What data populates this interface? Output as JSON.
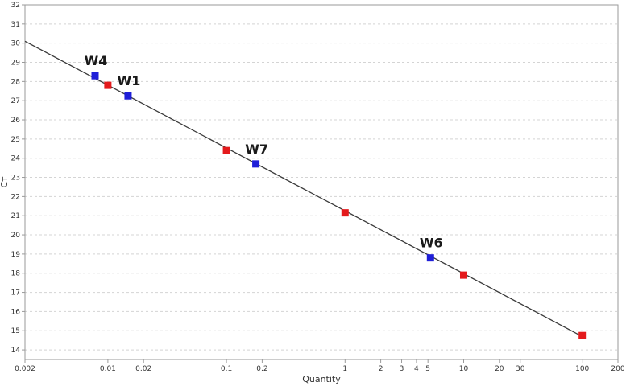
{
  "chart_data": {
    "type": "scatter",
    "xlabel": "Quantity",
    "ylabel": "Cᴛ",
    "xscale": "log",
    "xlim": [
      0.002,
      200
    ],
    "ylim": [
      13.5,
      32
    ],
    "grid": "horizontal dashed",
    "x_ticks": [
      0.002,
      0.01,
      0.02,
      0.1,
      0.2,
      1,
      2,
      3,
      4,
      5,
      10,
      20,
      30,
      100,
      200
    ],
    "x_tick_labels": [
      "0.002",
      "0.01",
      "0.02",
      "0.1",
      "0.2",
      "1",
      "2",
      "3",
      "4",
      "5",
      "10",
      "20",
      "30",
      "100",
      "200"
    ],
    "y_ticks": [
      14,
      15,
      16,
      17,
      18,
      19,
      20,
      21,
      22,
      23,
      24,
      25,
      26,
      27,
      28,
      29,
      30,
      31,
      32
    ],
    "y_tick_labels": [
      "14",
      "15",
      "16",
      "17",
      "18",
      "19",
      "20",
      "21",
      "22",
      "23",
      "24",
      "25",
      "26",
      "27",
      "28",
      "29",
      "30",
      "31",
      "32"
    ],
    "fit_line": {
      "x": [
        0.002,
        100
      ],
      "y": [
        30.1,
        14.7
      ],
      "color": "#3a3a3a"
    },
    "series": [
      {
        "color": "#e41a1c",
        "points": [
          {
            "x": 0.01,
            "y": 27.8
          },
          {
            "x": 0.1,
            "y": 24.4
          },
          {
            "x": 1,
            "y": 21.15
          },
          {
            "x": 10,
            "y": 17.9
          },
          {
            "x": 100,
            "y": 14.75
          }
        ]
      },
      {
        "color": "#1f1fd8",
        "points": [
          {
            "x": 0.0078,
            "y": 28.3,
            "label": "W4"
          },
          {
            "x": 0.0148,
            "y": 27.25,
            "label": "W1"
          },
          {
            "x": 0.177,
            "y": 23.7,
            "label": "W7"
          },
          {
            "x": 5.25,
            "y": 18.8,
            "label": "W6"
          }
        ]
      }
    ]
  }
}
